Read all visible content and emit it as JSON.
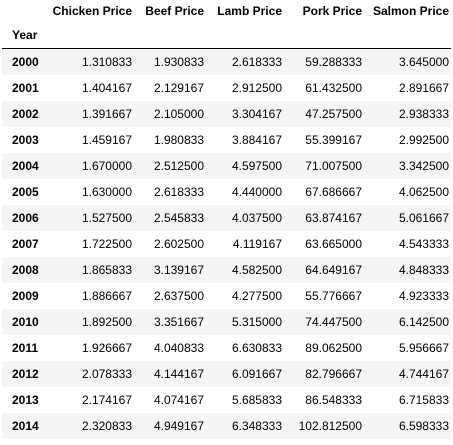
{
  "table": {
    "index_name": "Year",
    "columns": [
      "Chicken Price",
      "Beef Price",
      "Lamb Price",
      "Pork Price",
      "Salmon Price"
    ],
    "rows": [
      {
        "year": "2000",
        "values": [
          "1.310833",
          "1.930833",
          "2.618333",
          "59.288333",
          "3.645000"
        ]
      },
      {
        "year": "2001",
        "values": [
          "1.404167",
          "2.129167",
          "2.912500",
          "61.432500",
          "2.891667"
        ]
      },
      {
        "year": "2002",
        "values": [
          "1.391667",
          "2.105000",
          "3.304167",
          "47.257500",
          "2.938333"
        ]
      },
      {
        "year": "2003",
        "values": [
          "1.459167",
          "1.980833",
          "3.884167",
          "55.399167",
          "2.992500"
        ]
      },
      {
        "year": "2004",
        "values": [
          "1.670000",
          "2.512500",
          "4.597500",
          "71.007500",
          "3.342500"
        ]
      },
      {
        "year": "2005",
        "values": [
          "1.630000",
          "2.618333",
          "4.440000",
          "67.686667",
          "4.062500"
        ]
      },
      {
        "year": "2006",
        "values": [
          "1.527500",
          "2.545833",
          "4.037500",
          "63.874167",
          "5.061667"
        ]
      },
      {
        "year": "2007",
        "values": [
          "1.722500",
          "2.602500",
          "4.119167",
          "63.665000",
          "4.543333"
        ]
      },
      {
        "year": "2008",
        "values": [
          "1.865833",
          "3.139167",
          "4.582500",
          "64.649167",
          "4.848333"
        ]
      },
      {
        "year": "2009",
        "values": [
          "1.886667",
          "2.637500",
          "4.277500",
          "55.776667",
          "4.923333"
        ]
      },
      {
        "year": "2010",
        "values": [
          "1.892500",
          "3.351667",
          "5.315000",
          "74.447500",
          "6.142500"
        ]
      },
      {
        "year": "2011",
        "values": [
          "1.926667",
          "4.040833",
          "6.630833",
          "89.062500",
          "5.956667"
        ]
      },
      {
        "year": "2012",
        "values": [
          "2.078333",
          "4.144167",
          "6.091667",
          "82.796667",
          "4.744167"
        ]
      },
      {
        "year": "2013",
        "values": [
          "2.174167",
          "4.074167",
          "5.685833",
          "86.548333",
          "6.715833"
        ]
      },
      {
        "year": "2014",
        "values": [
          "2.320833",
          "4.949167",
          "6.348333",
          "102.812500",
          "6.598333"
        ]
      }
    ]
  }
}
